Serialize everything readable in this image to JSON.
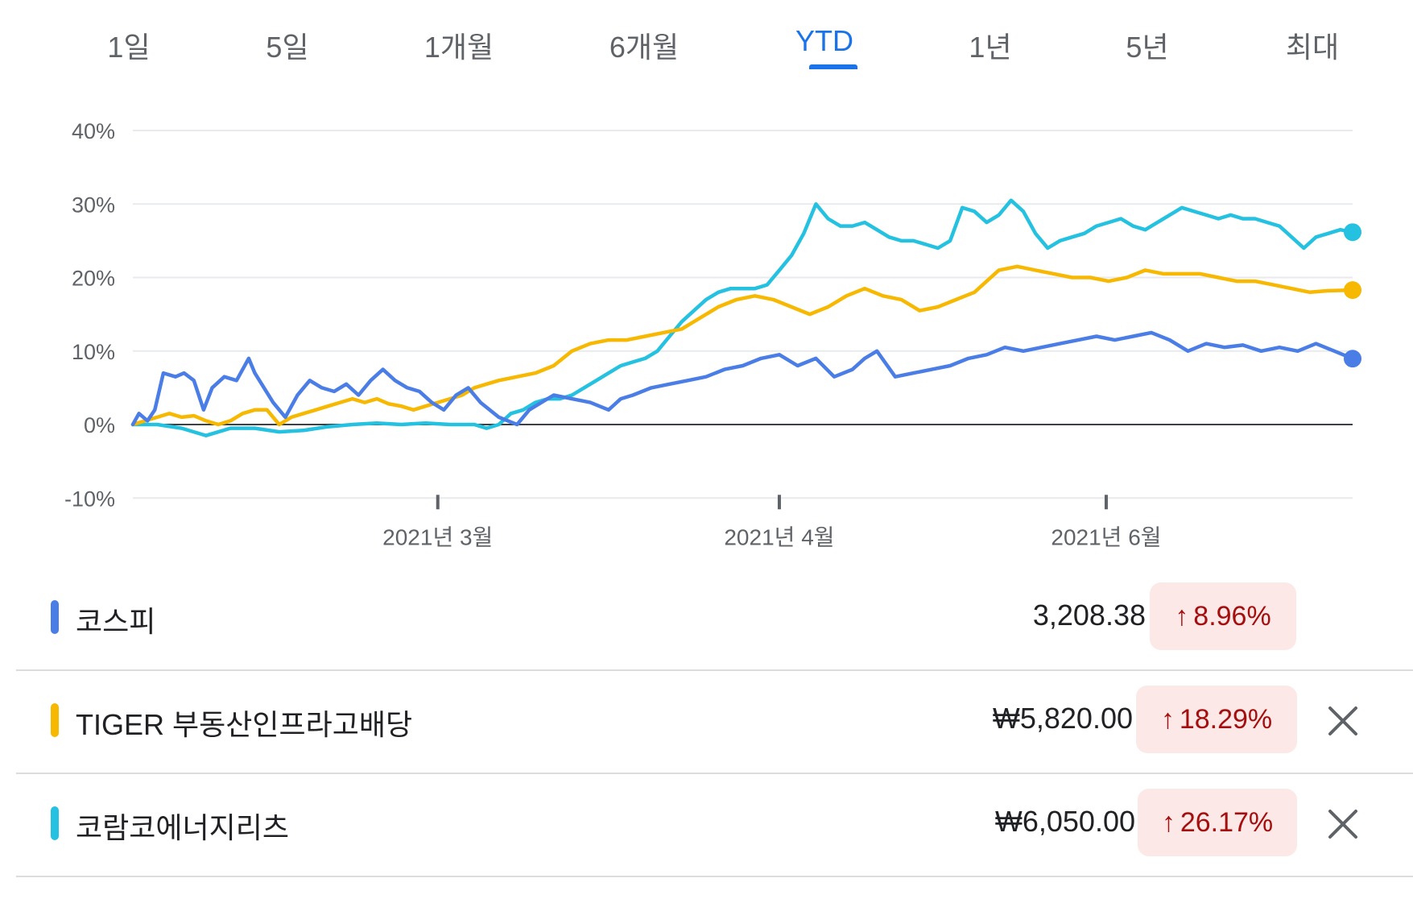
{
  "tabs": [
    {
      "label": "1일",
      "active": false
    },
    {
      "label": "5일",
      "active": false
    },
    {
      "label": "1개월",
      "active": false
    },
    {
      "label": "6개월",
      "active": false
    },
    {
      "label": "YTD",
      "active": true
    },
    {
      "label": "1년",
      "active": false
    },
    {
      "label": "5년",
      "active": false
    },
    {
      "label": "최대",
      "active": false
    }
  ],
  "chart_data": {
    "type": "line",
    "y_ticks": [
      "40%",
      "30%",
      "20%",
      "10%",
      "0%",
      "-10%"
    ],
    "ylim": [
      -10,
      40
    ],
    "x_ticks": [
      {
        "label": "2021년 3월",
        "x": 0.25
      },
      {
        "label": "2021년 4월",
        "x": 0.53
      },
      {
        "label": "2021년 6월",
        "x": 0.798
      }
    ],
    "grid": true,
    "zero_line": true,
    "series": [
      {
        "name": "코스피",
        "color": "#4a7ee6",
        "final_value": 8.96,
        "points": [
          [
            0,
            0
          ],
          [
            0.005,
            1.5
          ],
          [
            0.012,
            0.5
          ],
          [
            0.018,
            2
          ],
          [
            0.025,
            7
          ],
          [
            0.035,
            6.5
          ],
          [
            0.042,
            7
          ],
          [
            0.05,
            6
          ],
          [
            0.058,
            2
          ],
          [
            0.065,
            5
          ],
          [
            0.075,
            6.5
          ],
          [
            0.085,
            6
          ],
          [
            0.095,
            9
          ],
          [
            0.1,
            7
          ],
          [
            0.115,
            3
          ],
          [
            0.125,
            1
          ],
          [
            0.135,
            4
          ],
          [
            0.145,
            6
          ],
          [
            0.155,
            5
          ],
          [
            0.165,
            4.5
          ],
          [
            0.175,
            5.5
          ],
          [
            0.185,
            4
          ],
          [
            0.195,
            6
          ],
          [
            0.205,
            7.5
          ],
          [
            0.215,
            6
          ],
          [
            0.225,
            5
          ],
          [
            0.235,
            4.5
          ],
          [
            0.245,
            3
          ],
          [
            0.255,
            2
          ],
          [
            0.265,
            4
          ],
          [
            0.275,
            5
          ],
          [
            0.285,
            3
          ],
          [
            0.3,
            1
          ],
          [
            0.315,
            0
          ],
          [
            0.325,
            2
          ],
          [
            0.335,
            3
          ],
          [
            0.345,
            4
          ],
          [
            0.36,
            3.5
          ],
          [
            0.375,
            3
          ],
          [
            0.39,
            2
          ],
          [
            0.4,
            3.5
          ],
          [
            0.41,
            4
          ],
          [
            0.425,
            5
          ],
          [
            0.44,
            5.5
          ],
          [
            0.455,
            6
          ],
          [
            0.47,
            6.5
          ],
          [
            0.485,
            7.5
          ],
          [
            0.5,
            8
          ],
          [
            0.515,
            9
          ],
          [
            0.53,
            9.5
          ],
          [
            0.545,
            8
          ],
          [
            0.56,
            9
          ],
          [
            0.575,
            6.5
          ],
          [
            0.59,
            7.5
          ],
          [
            0.6,
            9
          ],
          [
            0.61,
            10
          ],
          [
            0.625,
            6.5
          ],
          [
            0.64,
            7
          ],
          [
            0.655,
            7.5
          ],
          [
            0.67,
            8
          ],
          [
            0.685,
            9
          ],
          [
            0.7,
            9.5
          ],
          [
            0.715,
            10.5
          ],
          [
            0.73,
            10
          ],
          [
            0.745,
            10.5
          ],
          [
            0.76,
            11
          ],
          [
            0.775,
            11.5
          ],
          [
            0.79,
            12
          ],
          [
            0.805,
            11.5
          ],
          [
            0.82,
            12
          ],
          [
            0.835,
            12.5
          ],
          [
            0.85,
            11.5
          ],
          [
            0.865,
            10
          ],
          [
            0.88,
            11
          ],
          [
            0.895,
            10.5
          ],
          [
            0.91,
            10.8
          ],
          [
            0.925,
            10
          ],
          [
            0.94,
            10.5
          ],
          [
            0.955,
            10
          ],
          [
            0.97,
            11
          ],
          [
            0.985,
            10
          ],
          [
            1.0,
            8.96
          ]
        ]
      },
      {
        "name": "TIGER 부동산인프라고배당",
        "color": "#f6b800",
        "final_value": 18.29,
        "points": [
          [
            0,
            0
          ],
          [
            0.01,
            0.5
          ],
          [
            0.02,
            1
          ],
          [
            0.03,
            1.5
          ],
          [
            0.04,
            1
          ],
          [
            0.05,
            1.2
          ],
          [
            0.06,
            0.5
          ],
          [
            0.07,
            0
          ],
          [
            0.08,
            0.5
          ],
          [
            0.09,
            1.5
          ],
          [
            0.1,
            2
          ],
          [
            0.11,
            2
          ],
          [
            0.12,
            0
          ],
          [
            0.13,
            1
          ],
          [
            0.14,
            1.5
          ],
          [
            0.15,
            2
          ],
          [
            0.16,
            2.5
          ],
          [
            0.17,
            3
          ],
          [
            0.18,
            3.5
          ],
          [
            0.19,
            3
          ],
          [
            0.2,
            3.5
          ],
          [
            0.21,
            2.8
          ],
          [
            0.22,
            2.5
          ],
          [
            0.23,
            2
          ],
          [
            0.24,
            2.5
          ],
          [
            0.25,
            3
          ],
          [
            0.26,
            3.5
          ],
          [
            0.27,
            4
          ],
          [
            0.28,
            5
          ],
          [
            0.29,
            5.5
          ],
          [
            0.3,
            6
          ],
          [
            0.315,
            6.5
          ],
          [
            0.33,
            7
          ],
          [
            0.345,
            8
          ],
          [
            0.36,
            10
          ],
          [
            0.375,
            11
          ],
          [
            0.39,
            11.5
          ],
          [
            0.405,
            11.5
          ],
          [
            0.42,
            12
          ],
          [
            0.435,
            12.5
          ],
          [
            0.45,
            13
          ],
          [
            0.465,
            14.5
          ],
          [
            0.48,
            16
          ],
          [
            0.495,
            17
          ],
          [
            0.51,
            17.5
          ],
          [
            0.525,
            17
          ],
          [
            0.54,
            16
          ],
          [
            0.555,
            15
          ],
          [
            0.57,
            16
          ],
          [
            0.585,
            17.5
          ],
          [
            0.6,
            18.5
          ],
          [
            0.615,
            17.5
          ],
          [
            0.63,
            17
          ],
          [
            0.645,
            15.5
          ],
          [
            0.66,
            16
          ],
          [
            0.675,
            17
          ],
          [
            0.69,
            18
          ],
          [
            0.7,
            19.5
          ],
          [
            0.71,
            21
          ],
          [
            0.725,
            21.5
          ],
          [
            0.74,
            21
          ],
          [
            0.755,
            20.5
          ],
          [
            0.77,
            20
          ],
          [
            0.785,
            20
          ],
          [
            0.8,
            19.5
          ],
          [
            0.815,
            20
          ],
          [
            0.83,
            21
          ],
          [
            0.845,
            20.5
          ],
          [
            0.86,
            20.5
          ],
          [
            0.875,
            20.5
          ],
          [
            0.89,
            20
          ],
          [
            0.905,
            19.5
          ],
          [
            0.92,
            19.5
          ],
          [
            0.935,
            19
          ],
          [
            0.95,
            18.5
          ],
          [
            0.965,
            18
          ],
          [
            0.98,
            18.2
          ],
          [
            1.0,
            18.29
          ]
        ]
      },
      {
        "name": "코람코에너지리츠",
        "color": "#24c1e0",
        "final_value": 26.17,
        "points": [
          [
            0,
            0
          ],
          [
            0.02,
            0
          ],
          [
            0.04,
            -0.5
          ],
          [
            0.06,
            -1.5
          ],
          [
            0.08,
            -0.5
          ],
          [
            0.1,
            -0.5
          ],
          [
            0.12,
            -1
          ],
          [
            0.14,
            -0.8
          ],
          [
            0.16,
            -0.3
          ],
          [
            0.18,
            0
          ],
          [
            0.2,
            0.2
          ],
          [
            0.22,
            0
          ],
          [
            0.24,
            0.2
          ],
          [
            0.26,
            0
          ],
          [
            0.28,
            0
          ],
          [
            0.29,
            -0.5
          ],
          [
            0.3,
            0
          ],
          [
            0.31,
            1.5
          ],
          [
            0.32,
            2
          ],
          [
            0.33,
            3
          ],
          [
            0.34,
            3.5
          ],
          [
            0.35,
            3.5
          ],
          [
            0.36,
            4
          ],
          [
            0.37,
            5
          ],
          [
            0.38,
            6
          ],
          [
            0.39,
            7
          ],
          [
            0.4,
            8
          ],
          [
            0.41,
            8.5
          ],
          [
            0.42,
            9
          ],
          [
            0.43,
            10
          ],
          [
            0.44,
            12
          ],
          [
            0.45,
            14
          ],
          [
            0.46,
            15.5
          ],
          [
            0.47,
            17
          ],
          [
            0.48,
            18
          ],
          [
            0.49,
            18.5
          ],
          [
            0.5,
            18.5
          ],
          [
            0.51,
            18.5
          ],
          [
            0.52,
            19
          ],
          [
            0.53,
            21
          ],
          [
            0.54,
            23
          ],
          [
            0.55,
            26
          ],
          [
            0.56,
            30
          ],
          [
            0.57,
            28
          ],
          [
            0.58,
            27
          ],
          [
            0.59,
            27
          ],
          [
            0.6,
            27.5
          ],
          [
            0.61,
            26.5
          ],
          [
            0.62,
            25.5
          ],
          [
            0.63,
            25
          ],
          [
            0.64,
            25
          ],
          [
            0.65,
            24.5
          ],
          [
            0.66,
            24
          ],
          [
            0.67,
            25
          ],
          [
            0.68,
            29.5
          ],
          [
            0.69,
            29
          ],
          [
            0.7,
            27.5
          ],
          [
            0.71,
            28.5
          ],
          [
            0.72,
            30.5
          ],
          [
            0.73,
            29
          ],
          [
            0.74,
            26
          ],
          [
            0.75,
            24
          ],
          [
            0.76,
            25
          ],
          [
            0.77,
            25.5
          ],
          [
            0.78,
            26
          ],
          [
            0.79,
            27
          ],
          [
            0.8,
            27.5
          ],
          [
            0.81,
            28
          ],
          [
            0.82,
            27
          ],
          [
            0.83,
            26.5
          ],
          [
            0.84,
            27.5
          ],
          [
            0.85,
            28.5
          ],
          [
            0.86,
            29.5
          ],
          [
            0.87,
            29
          ],
          [
            0.88,
            28.5
          ],
          [
            0.89,
            28
          ],
          [
            0.9,
            28.5
          ],
          [
            0.91,
            28
          ],
          [
            0.92,
            28
          ],
          [
            0.93,
            27.5
          ],
          [
            0.94,
            27
          ],
          [
            0.95,
            25.5
          ],
          [
            0.96,
            24
          ],
          [
            0.97,
            25.5
          ],
          [
            0.98,
            26
          ],
          [
            0.99,
            26.5
          ],
          [
            1.0,
            26.17
          ]
        ]
      }
    ]
  },
  "rows": [
    {
      "name": "코스피",
      "price": "3,208.38",
      "change": "8.96%",
      "color": "#4a7ee6",
      "closable": false
    },
    {
      "name": "TIGER 부동산인프라고배당",
      "price": "₩5,820.00",
      "change": "18.29%",
      "color": "#f6b800",
      "closable": true
    },
    {
      "name": "코람코에너지리츠",
      "price": "₩6,050.00",
      "change": "26.17%",
      "color": "#24c1e0",
      "closable": true
    }
  ],
  "icons": {
    "arrow": "arrow-up-icon",
    "close": "close-icon"
  }
}
